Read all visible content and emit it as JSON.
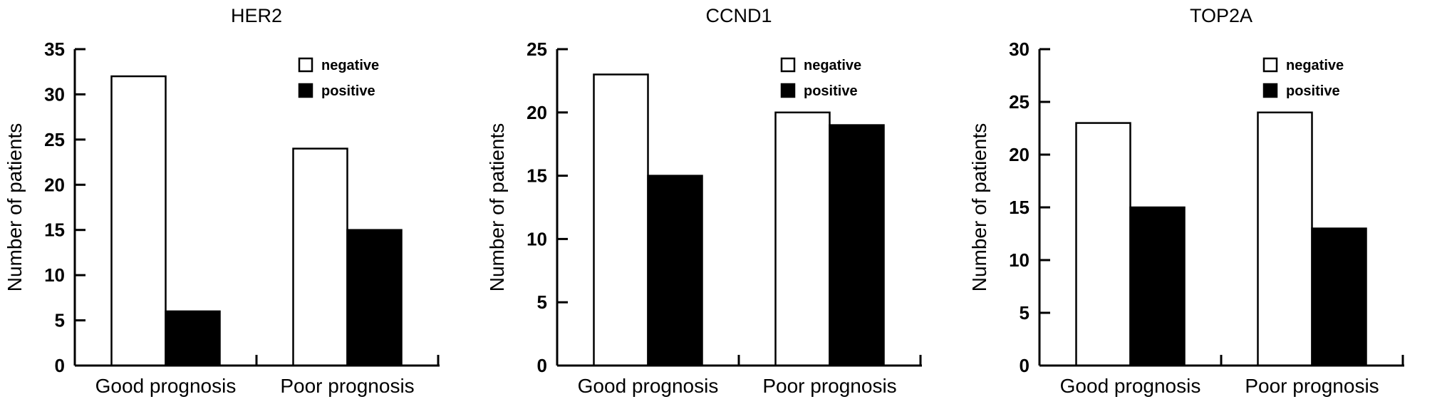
{
  "figure": {
    "background": "#ffffff",
    "ink_color": "#000000"
  },
  "chart_data": [
    {
      "type": "bar",
      "title": "HER2",
      "ylabel": "Number of patients",
      "xlabel": "",
      "ylim": [
        0,
        35
      ],
      "ytick_step": 5,
      "grid": false,
      "legend_position": "upper right",
      "categories": [
        "Good prognosis",
        "Poor prognosis"
      ],
      "series": [
        {
          "name": "negative",
          "fill": "#ffffff",
          "values": [
            32,
            24
          ]
        },
        {
          "name": "positive",
          "fill": "#000000",
          "values": [
            6,
            15
          ]
        }
      ]
    },
    {
      "type": "bar",
      "title": "CCND1",
      "ylabel": "Number of patients",
      "xlabel": "",
      "ylim": [
        0,
        25
      ],
      "ytick_step": 5,
      "grid": false,
      "legend_position": "upper right",
      "categories": [
        "Good prognosis",
        "Poor prognosis"
      ],
      "series": [
        {
          "name": "negative",
          "fill": "#ffffff",
          "values": [
            23,
            20
          ]
        },
        {
          "name": "positive",
          "fill": "#000000",
          "values": [
            15,
            19
          ]
        }
      ]
    },
    {
      "type": "bar",
      "title": "TOP2A",
      "ylabel": "Number of patients",
      "xlabel": "",
      "ylim": [
        0,
        30
      ],
      "ytick_step": 5,
      "grid": false,
      "legend_position": "upper right",
      "categories": [
        "Good prognosis",
        "Poor prognosis"
      ],
      "series": [
        {
          "name": "negative",
          "fill": "#ffffff",
          "values": [
            23,
            24
          ]
        },
        {
          "name": "positive",
          "fill": "#000000",
          "values": [
            15,
            13
          ]
        }
      ]
    }
  ]
}
